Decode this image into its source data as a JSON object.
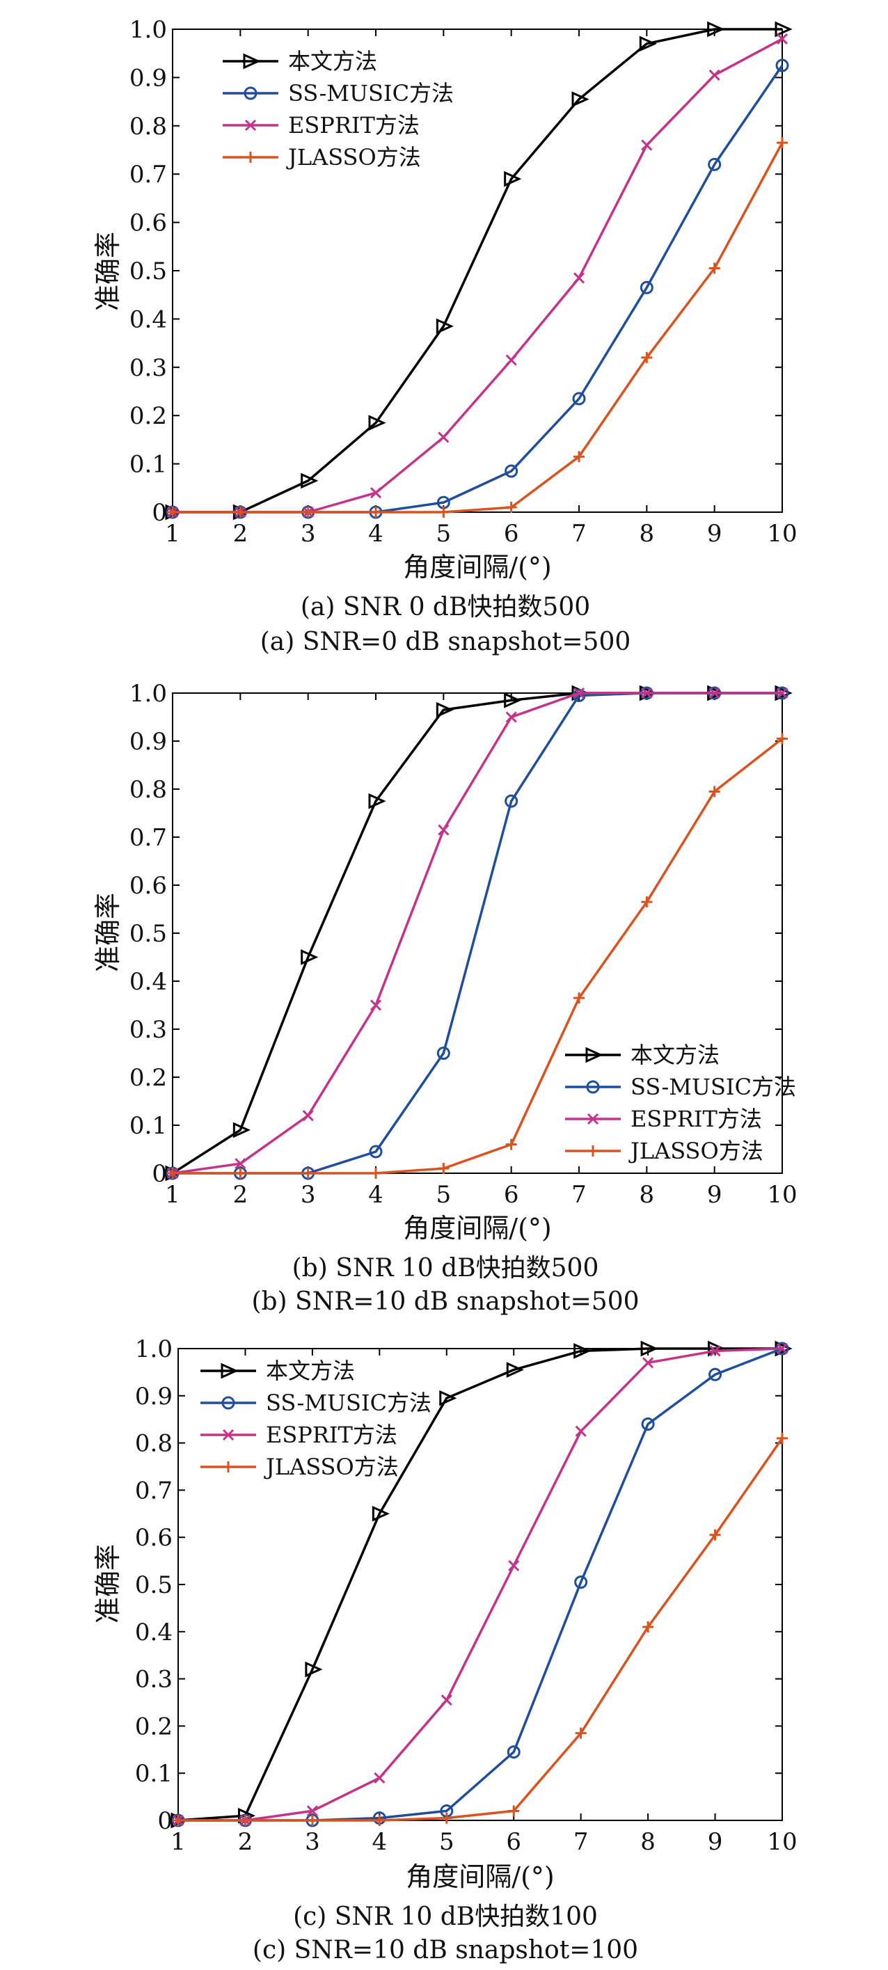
{
  "chart_data": [
    {
      "type": "line",
      "caption": "(a) SNR 0 dB快拍数500",
      "caption_en": "(a) SNR=0 dB snapshot=500",
      "xlabel": "角度间隔/(°)",
      "ylabel": "准确率",
      "xlim": [
        1,
        10
      ],
      "ylim": [
        0,
        1
      ],
      "x_ticks": [
        "1",
        "2",
        "3",
        "4",
        "5",
        "6",
        "7",
        "8",
        "9",
        "10"
      ],
      "y_ticks": [
        "0",
        "0.1",
        "0.2",
        "0.3",
        "0.4",
        "0.5",
        "0.6",
        "0.7",
        "0.8",
        "0.9",
        "1.0"
      ],
      "grid": false,
      "legend_position": "top-left",
      "x": [
        1,
        2,
        3,
        4,
        5,
        6,
        7,
        8,
        9,
        10
      ],
      "series": [
        {
          "name": "本文方法",
          "color": "#000000",
          "marker": "triangle-right",
          "values": [
            0,
            0,
            0.065,
            0.185,
            0.385,
            0.69,
            0.855,
            0.97,
            1.0,
            1.0
          ]
        },
        {
          "name": "SS-MUSIC方法",
          "color": "#1f4e9c",
          "marker": "circle",
          "values": [
            0,
            0,
            0,
            0,
            0.02,
            0.085,
            0.235,
            0.465,
            0.72,
            0.925
          ]
        },
        {
          "name": "ESPRIT方法",
          "color": "#c4338a",
          "marker": "x",
          "values": [
            0,
            0,
            0,
            0.04,
            0.155,
            0.315,
            0.485,
            0.76,
            0.905,
            0.98
          ]
        },
        {
          "name": "JLASSO方法",
          "color": "#d9531e",
          "marker": "plus",
          "values": [
            0,
            0,
            0,
            0,
            0,
            0.01,
            0.115,
            0.32,
            0.505,
            0.765
          ]
        }
      ]
    },
    {
      "type": "line",
      "caption": "(b) SNR 10 dB快拍数500",
      "caption_en": "(b) SNR=10 dB snapshot=500",
      "xlabel": "角度间隔/(°)",
      "ylabel": "准确率",
      "xlim": [
        1,
        10
      ],
      "ylim": [
        0,
        1
      ],
      "x_ticks": [
        "1",
        "2",
        "3",
        "4",
        "5",
        "6",
        "7",
        "8",
        "9",
        "10"
      ],
      "y_ticks": [
        "0",
        "0.1",
        "0.2",
        "0.3",
        "0.4",
        "0.5",
        "0.6",
        "0.7",
        "0.8",
        "0.9",
        "1.0"
      ],
      "grid": false,
      "legend_position": "bottom-right",
      "x": [
        1,
        2,
        3,
        4,
        5,
        6,
        7,
        8,
        9,
        10
      ],
      "series": [
        {
          "name": "本文方法",
          "color": "#000000",
          "marker": "triangle-right",
          "values": [
            0,
            0.09,
            0.45,
            0.775,
            0.965,
            0.985,
            1.0,
            1.0,
            1.0,
            1.0
          ]
        },
        {
          "name": "SS-MUSIC方法",
          "color": "#1f4e9c",
          "marker": "circle",
          "values": [
            0,
            0,
            0,
            0.045,
            0.25,
            0.775,
            0.995,
            1.0,
            1.0,
            1.0
          ]
        },
        {
          "name": "ESPRIT方法",
          "color": "#c4338a",
          "marker": "x",
          "values": [
            0,
            0.02,
            0.12,
            0.35,
            0.715,
            0.95,
            1.0,
            1.0,
            1.0,
            1.0
          ]
        },
        {
          "name": "JLASSO方法",
          "color": "#d9531e",
          "marker": "plus",
          "values": [
            0,
            0,
            0,
            0,
            0.01,
            0.06,
            0.365,
            0.565,
            0.795,
            0.905
          ]
        }
      ]
    },
    {
      "type": "line",
      "caption": "(c) SNR 10 dB快拍数100",
      "caption_en": "(c) SNR=10 dB snapshot=100",
      "xlabel": "角度间隔/(°)",
      "ylabel": "准确率",
      "xlim": [
        1,
        10
      ],
      "ylim": [
        0,
        1
      ],
      "x_ticks": [
        "1",
        "2",
        "3",
        "4",
        "5",
        "6",
        "7",
        "8",
        "9",
        "10"
      ],
      "y_ticks": [
        "0",
        "0.1",
        "0.2",
        "0.3",
        "0.4",
        "0.5",
        "0.6",
        "0.7",
        "0.8",
        "0.9",
        "1.0"
      ],
      "grid": false,
      "legend_position": "top-left",
      "x": [
        1,
        2,
        3,
        4,
        5,
        6,
        7,
        8,
        9,
        10
      ],
      "series": [
        {
          "name": "本文方法",
          "color": "#000000",
          "marker": "triangle-right",
          "values": [
            0,
            0.01,
            0.32,
            0.65,
            0.895,
            0.955,
            0.995,
            1.0,
            1.0,
            1.0
          ]
        },
        {
          "name": "SS-MUSIC方法",
          "color": "#1f4e9c",
          "marker": "circle",
          "values": [
            0,
            0,
            0,
            0.005,
            0.02,
            0.145,
            0.505,
            0.84,
            0.945,
            1.0
          ]
        },
        {
          "name": "ESPRIT方法",
          "color": "#c4338a",
          "marker": "x",
          "values": [
            0,
            0,
            0.02,
            0.09,
            0.255,
            0.54,
            0.825,
            0.97,
            0.995,
            1.0
          ]
        },
        {
          "name": "JLASSO方法",
          "color": "#d9531e",
          "marker": "plus",
          "values": [
            0,
            0,
            0,
            0,
            0.005,
            0.02,
            0.185,
            0.41,
            0.605,
            0.81
          ]
        }
      ]
    }
  ]
}
